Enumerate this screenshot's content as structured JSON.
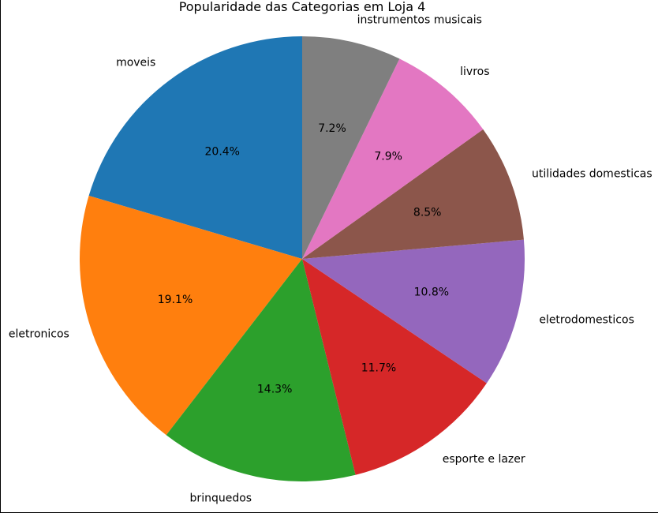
{
  "chart_data": {
    "type": "pie",
    "title": "Popularidade das Categorias em Loja 4",
    "start_angle_deg": 90,
    "direction": "counterclockwise",
    "slices": [
      {
        "label": "moveis",
        "value": 20.4,
        "pct_label": "20.4%",
        "color": "#1f77b4"
      },
      {
        "label": "eletronicos",
        "value": 19.1,
        "pct_label": "19.1%",
        "color": "#ff7f0e"
      },
      {
        "label": "brinquedos",
        "value": 14.3,
        "pct_label": "14.3%",
        "color": "#2ca02c"
      },
      {
        "label": "esporte e lazer",
        "value": 11.7,
        "pct_label": "11.7%",
        "color": "#d62728"
      },
      {
        "label": "eletrodomesticos",
        "value": 10.8,
        "pct_label": "10.8%",
        "color": "#9467bd"
      },
      {
        "label": "utilidades domesticas",
        "value": 8.5,
        "pct_label": "8.5%",
        "color": "#8c564b"
      },
      {
        "label": "livros",
        "value": 7.9,
        "pct_label": "7.9%",
        "color": "#e377c2"
      },
      {
        "label": "instrumentos musicais",
        "value": 7.2,
        "pct_label": "7.2%",
        "color": "#7f7f7f"
      }
    ]
  }
}
